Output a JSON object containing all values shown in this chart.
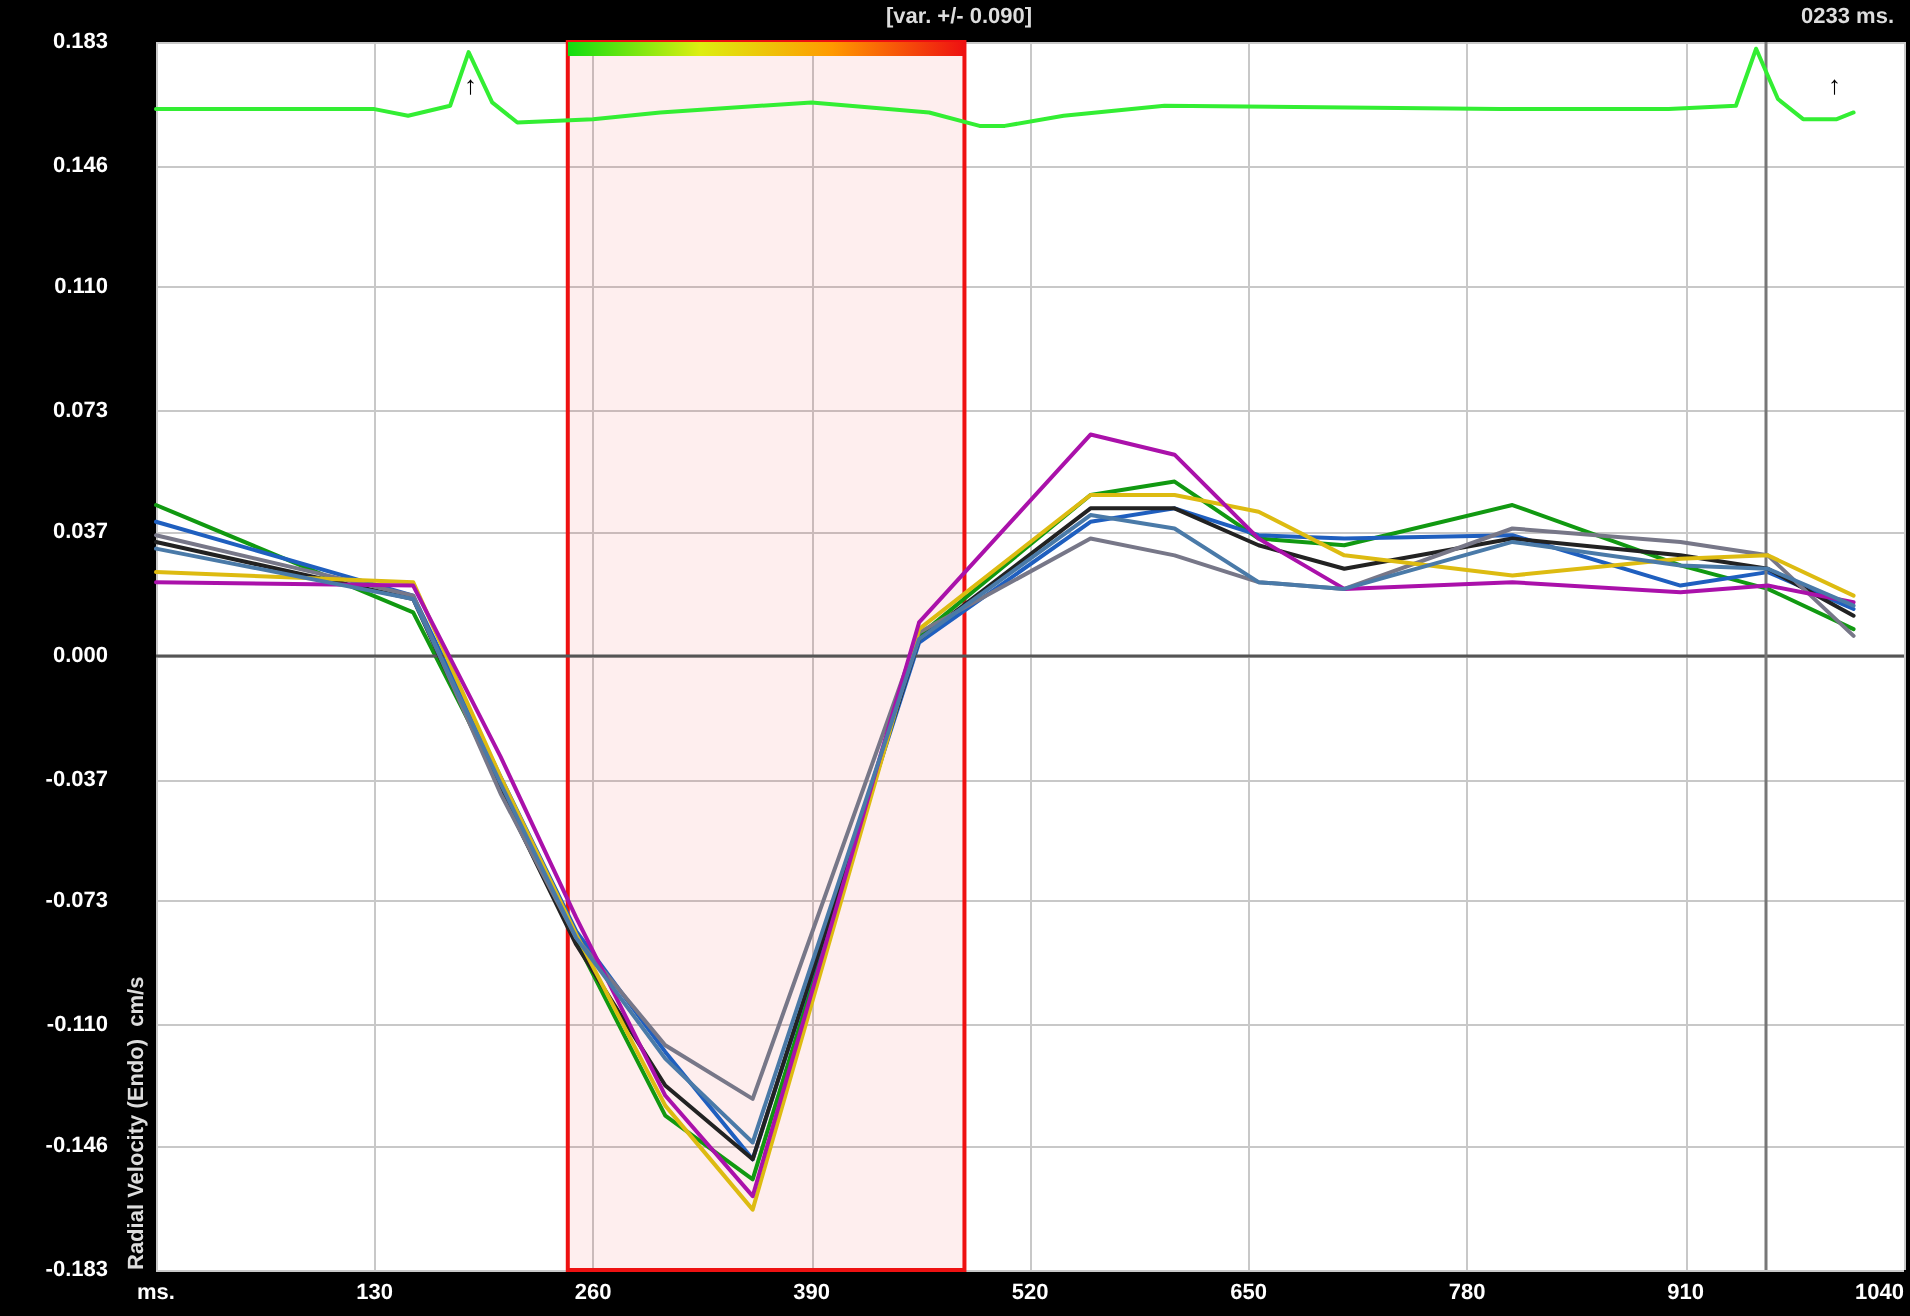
{
  "chart_data": {
    "type": "line",
    "ylabel": "Radial Velocity (Endo)  cm/s",
    "annotations": [
      "[var. +/- 0.090]",
      "0233 ms.",
      "↑",
      "↑"
    ],
    "x": [
      0,
      153,
      205,
      250,
      303,
      355,
      454,
      556,
      606,
      656,
      707,
      807,
      907,
      959,
      1010
    ],
    "series": [
      {
        "color": "#119911",
        "values": [
          0.045,
          0.013,
          -0.038,
          -0.085,
          -0.137,
          -0.156,
          0.006,
          0.048,
          0.052,
          0.035,
          0.033,
          0.045,
          0.027,
          0.02,
          0.008
        ]
      },
      {
        "color": "#1f5fbf",
        "values": [
          0.04,
          0.018,
          -0.036,
          -0.082,
          -0.118,
          -0.15,
          0.004,
          0.04,
          0.044,
          0.036,
          0.035,
          0.036,
          0.021,
          0.025,
          0.014
        ]
      },
      {
        "color": "#222222",
        "values": [
          0.034,
          0.017,
          -0.04,
          -0.086,
          -0.128,
          -0.15,
          0.005,
          0.044,
          0.044,
          0.033,
          0.026,
          0.035,
          0.03,
          0.026,
          0.012
        ]
      },
      {
        "color": "#777788",
        "values": [
          0.036,
          0.018,
          -0.041,
          -0.084,
          -0.116,
          -0.132,
          0.007,
          0.035,
          0.03,
          0.022,
          0.02,
          0.038,
          0.034,
          0.03,
          0.006
        ]
      },
      {
        "color": "#ddbb11",
        "values": [
          0.025,
          0.022,
          -0.036,
          -0.083,
          -0.134,
          -0.165,
          0.008,
          0.048,
          0.048,
          0.043,
          0.03,
          0.024,
          0.029,
          0.03,
          0.018
        ]
      },
      {
        "color": "#aa11aa",
        "values": [
          0.022,
          0.021,
          -0.03,
          -0.078,
          -0.131,
          -0.161,
          0.01,
          0.066,
          0.06,
          0.035,
          0.02,
          0.022,
          0.019,
          0.021,
          0.016
        ]
      },
      {
        "color": "#4a7aa8",
        "values": [
          0.032,
          0.017,
          -0.038,
          -0.084,
          -0.12,
          -0.145,
          0.005,
          0.042,
          0.038,
          0.022,
          0.02,
          0.034,
          0.027,
          0.026,
          0.015
        ]
      },
      {
        "color": "#33ee33",
        "x": [
          0,
          130,
          150,
          175,
          186,
          200,
          215,
          260,
          300,
          390,
          460,
          490,
          505,
          540,
          600,
          800,
          900,
          940,
          952,
          965,
          980,
          1000,
          1010
        ],
        "values": [
          0.163,
          0.163,
          0.161,
          0.164,
          0.18,
          0.165,
          0.159,
          0.16,
          0.162,
          0.165,
          0.162,
          0.158,
          0.158,
          0.161,
          0.164,
          0.163,
          0.163,
          0.164,
          0.181,
          0.166,
          0.16,
          0.16,
          0.162
        ]
      }
    ],
    "xlim": [
      0,
      1040
    ],
    "xticks": [
      {
        "value": 0,
        "label": "ms."
      },
      130,
      260,
      390,
      520,
      650,
      780,
      910,
      1040
    ],
    "ylim": [
      -0.183,
      0.183
    ],
    "yticks": [
      -0.183,
      -0.146,
      {
        "value": -0.11,
        "label": "-0.110"
      },
      -0.073,
      -0.037,
      {
        "value": 0,
        "label": "0.000"
      },
      0.037,
      0.073,
      {
        "value": 0.11,
        "label": "0.110"
      },
      0.146,
      0.183
    ],
    "grid": true,
    "marker": "none",
    "line_style": "solid",
    "ref_lines": [
      {
        "axis": "y",
        "value": 0,
        "color": "#555555"
      },
      {
        "axis": "x",
        "value": 958,
        "color": "#777777"
      }
    ],
    "bands": [
      {
        "axis": "x",
        "from": 245,
        "to": 481,
        "color": "#ee1111"
      }
    ]
  }
}
